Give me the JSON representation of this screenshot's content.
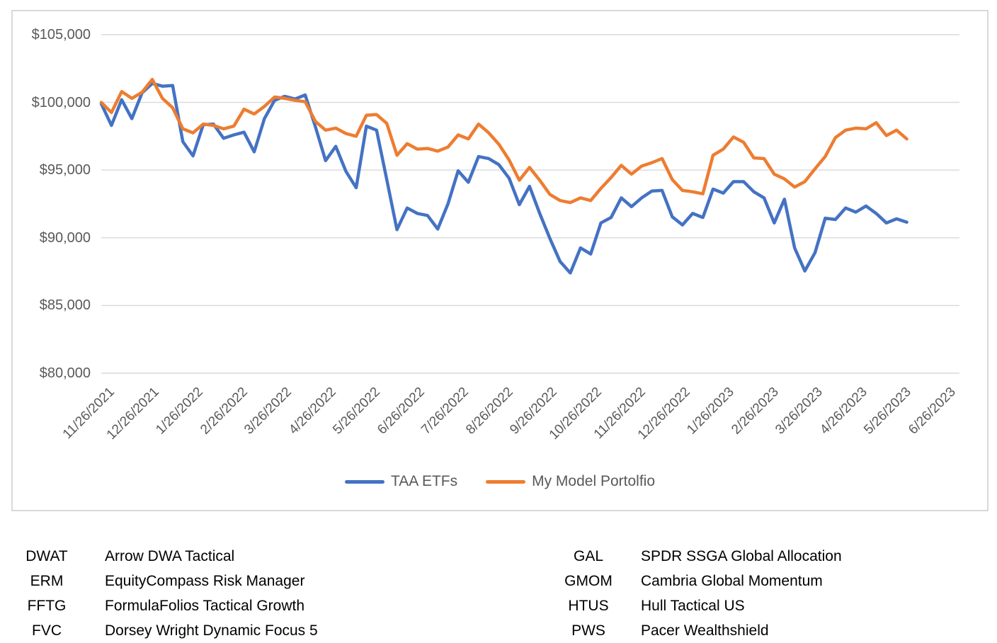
{
  "colors": {
    "taa_line": "#4472C4",
    "model_line": "#ED7D31",
    "gridline": "#D9D9D9",
    "chart_border": "#D9D9D9",
    "axis_text": "#595959",
    "table_text": "#000000"
  },
  "chart_data": {
    "type": "line",
    "title": "",
    "grid": true,
    "legend_position": "bottom",
    "ylim": [
      80000,
      105000
    ],
    "y_tick_step": 5000,
    "y_tick_labels": [
      "$105,000",
      "$100,000",
      "$95,000",
      "$90,000",
      "$85,000",
      "$80,000"
    ],
    "x_tick_labels": [
      "11/26/2021",
      "12/26/2021",
      "1/26/2022",
      "2/26/2022",
      "3/26/2022",
      "4/26/2022",
      "5/26/2022",
      "6/26/2022",
      "7/26/2022",
      "8/26/2022",
      "9/26/2022",
      "10/26/2022",
      "11/26/2022",
      "12/26/2022",
      "1/26/2023",
      "2/26/2023",
      "3/26/2023",
      "4/26/2023",
      "5/26/2023",
      "6/26/2023"
    ],
    "x_unit": "weeks",
    "x_start": "11/26/2021",
    "series": [
      {
        "name": "TAA ETFs",
        "color": "#4472C4",
        "values": [
          99900,
          98300,
          100200,
          98800,
          100700,
          101400,
          101200,
          101250,
          97100,
          96050,
          98350,
          98400,
          97350,
          97600,
          97800,
          96350,
          98800,
          100150,
          100450,
          100250,
          100550,
          98200,
          95700,
          96750,
          94900,
          93700,
          98250,
          97950,
          94300,
          90600,
          92200,
          91800,
          91650,
          90650,
          92500,
          94950,
          94100,
          96000,
          95850,
          95400,
          94400,
          92450,
          93800,
          91800,
          89950,
          88250,
          87400,
          89250,
          88800,
          91100,
          91500,
          92950,
          92300,
          92950,
          93450,
          93500,
          91550,
          90950,
          91800,
          91500,
          93600,
          93300,
          94150,
          94150,
          93400,
          92950,
          91100,
          92850,
          89250,
          87550,
          88900,
          91450,
          91350,
          92200,
          91900,
          92350,
          91800,
          91100,
          91400,
          91150
        ]
      },
      {
        "name": "My Model Portolfio",
        "color": "#ED7D31",
        "values": [
          100000,
          99250,
          100800,
          100300,
          100750,
          101700,
          100300,
          99600,
          98050,
          97750,
          98400,
          98300,
          98050,
          98250,
          99500,
          99150,
          99700,
          100400,
          100300,
          100150,
          100050,
          98600,
          97950,
          98100,
          97700,
          97500,
          99050,
          99100,
          98450,
          96100,
          96950,
          96550,
          96600,
          96400,
          96700,
          97600,
          97300,
          98400,
          97750,
          96900,
          95750,
          94250,
          95200,
          94250,
          93200,
          92750,
          92600,
          92950,
          92750,
          93650,
          94450,
          95350,
          94700,
          95300,
          95550,
          95850,
          94300,
          93500,
          93400,
          93250,
          96100,
          96550,
          97450,
          97050,
          95900,
          95850,
          94700,
          94350,
          93750,
          94150,
          95100,
          96000,
          97400,
          97950,
          98100,
          98050,
          98500,
          97550,
          97950,
          97300
        ]
      }
    ]
  },
  "legend": {
    "items": [
      {
        "label": "TAA ETFs"
      },
      {
        "label": "My Model Portolfio"
      }
    ]
  },
  "ticker_table": {
    "left": [
      {
        "ticker": "DWAT",
        "name": "Arrow DWA Tactical"
      },
      {
        "ticker": "ERM",
        "name": "EquityCompass Risk Manager"
      },
      {
        "ticker": "FFTG",
        "name": "FormulaFolios Tactical Growth"
      },
      {
        "ticker": "FVC",
        "name": "Dorsey Wright Dynamic Focus 5"
      }
    ],
    "right": [
      {
        "ticker": "GAL",
        "name": "SPDR SSGA Global Allocation"
      },
      {
        "ticker": "GMOM",
        "name": "Cambria Global Momentum"
      },
      {
        "ticker": "HTUS",
        "name": "Hull Tactical US"
      },
      {
        "ticker": "PWS",
        "name": "Pacer Wealthshield"
      }
    ]
  }
}
